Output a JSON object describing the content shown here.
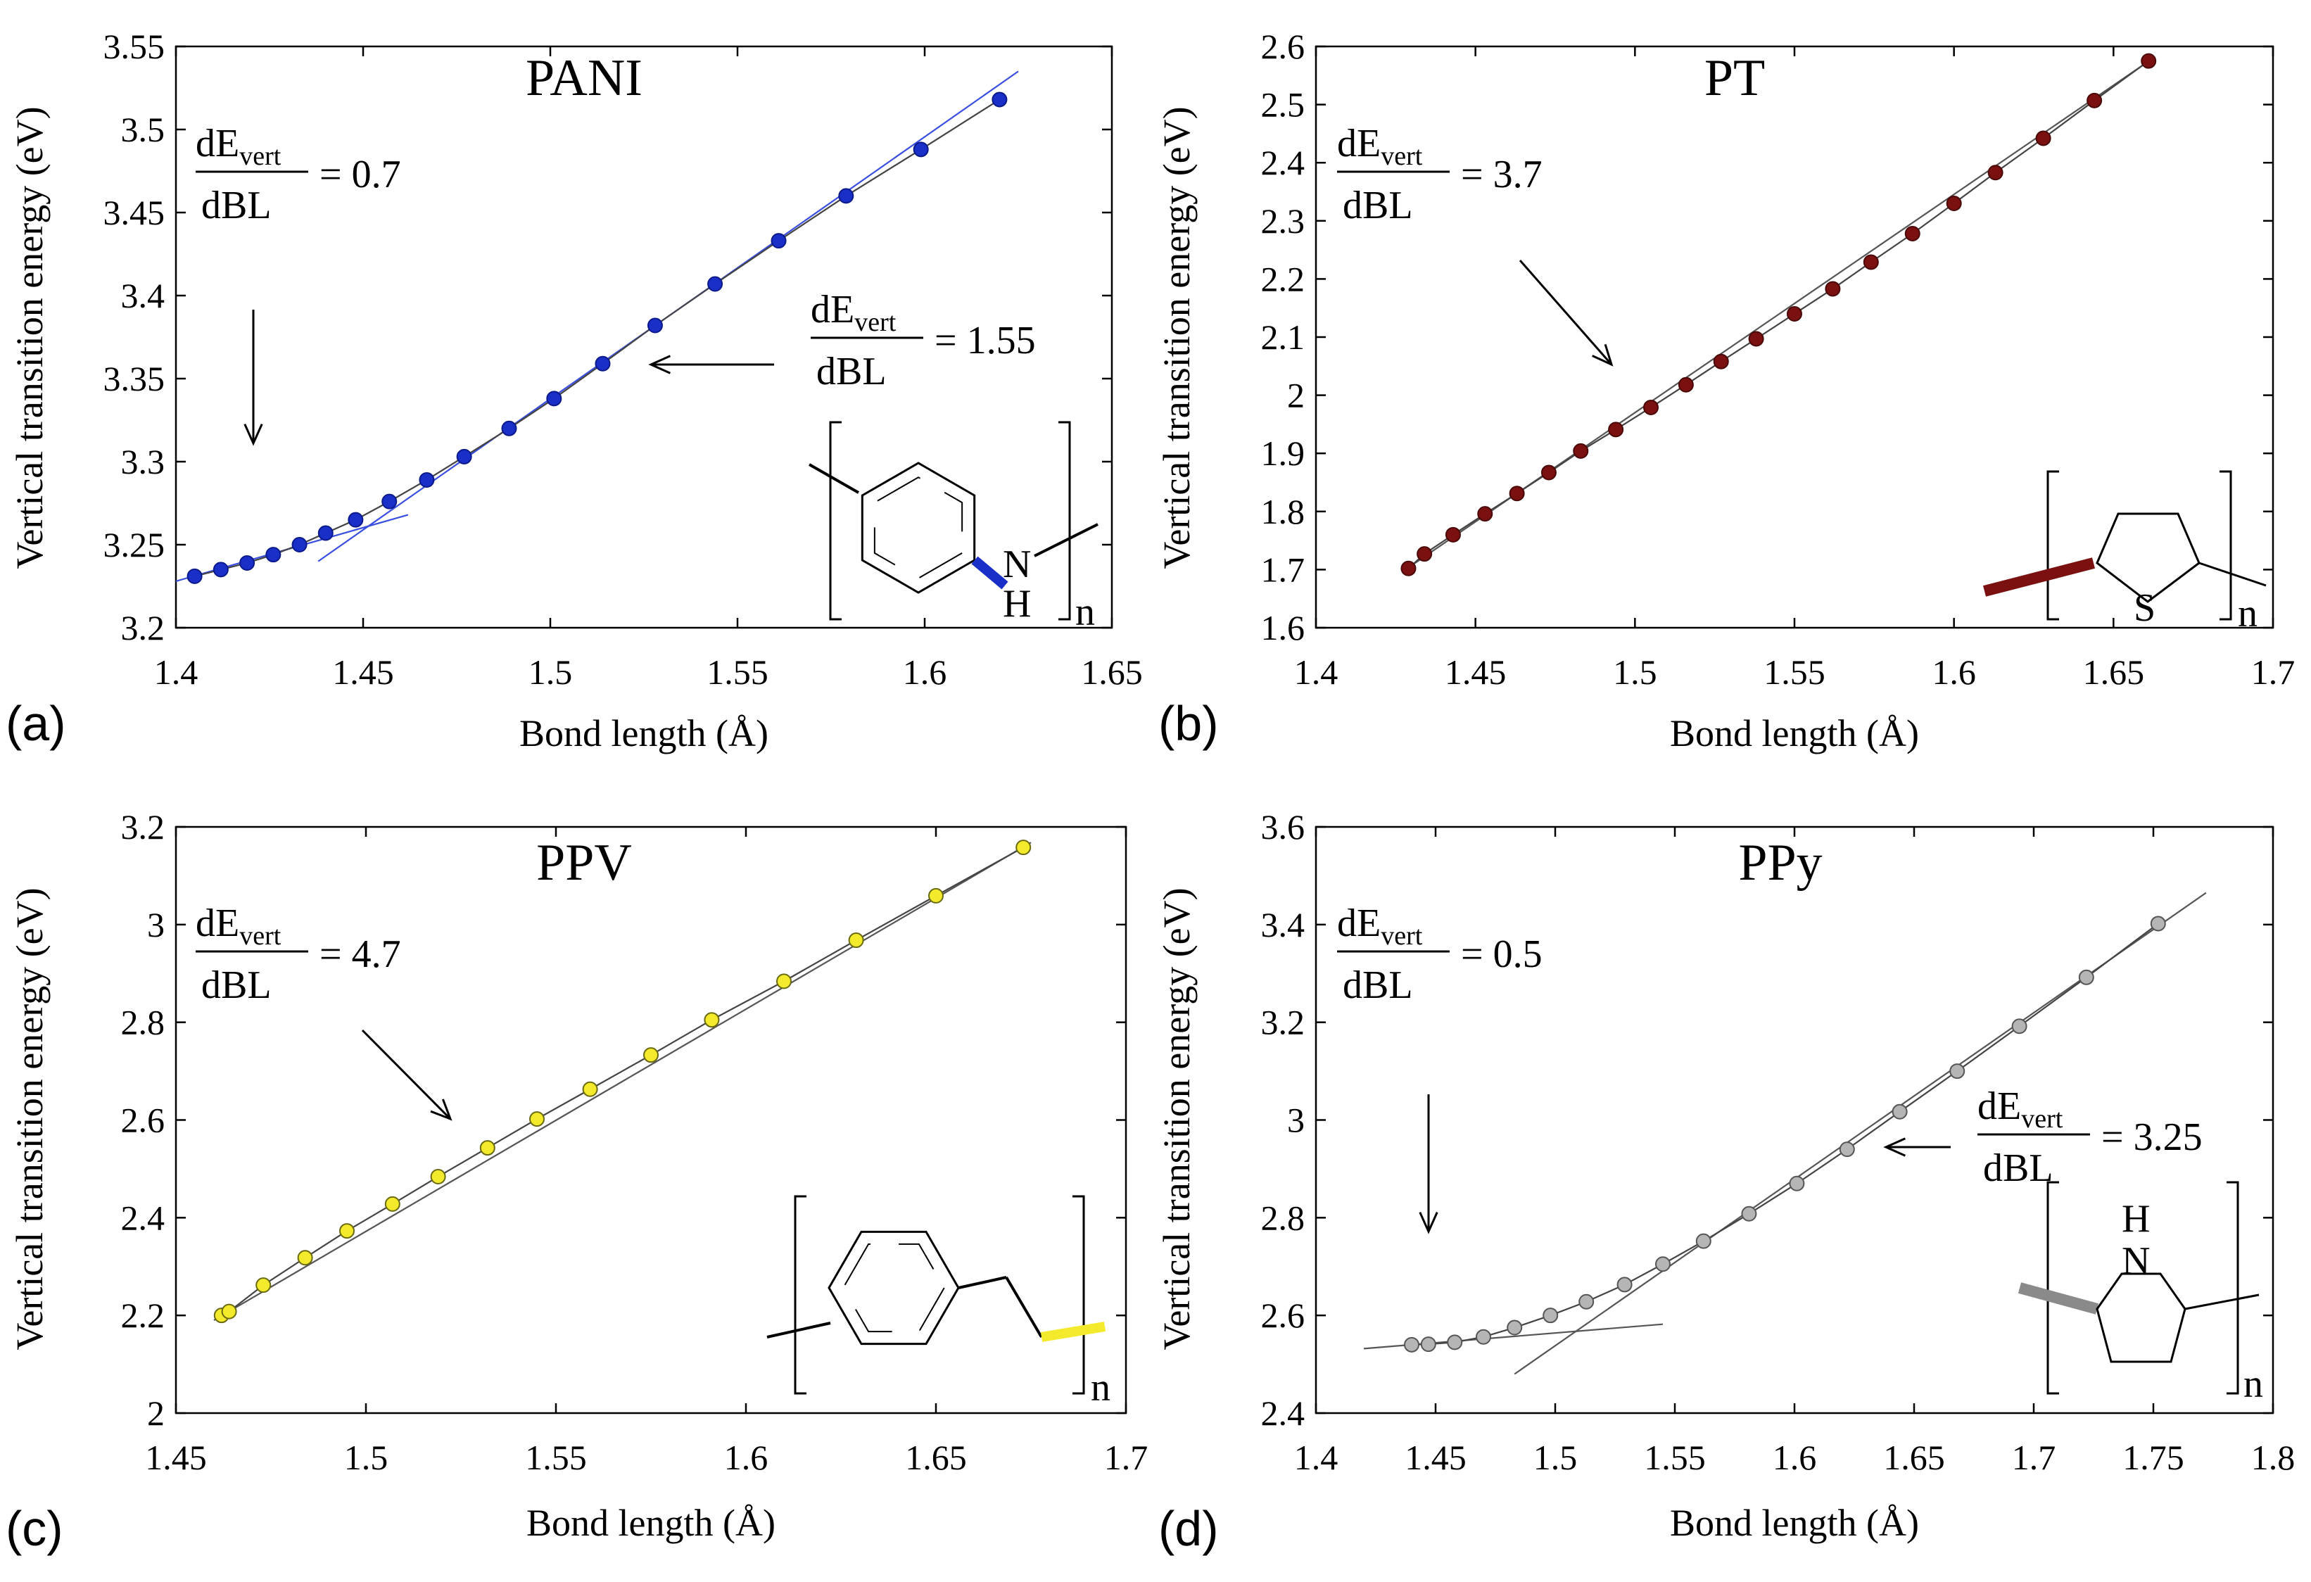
{
  "chart_data": [
    {
      "panel_label": "(a)",
      "type": "scatter",
      "title": "PANI",
      "xlabel": "Bond length (Å)",
      "ylabel": "Vertical transition energy (eV)",
      "xlim": [
        1.4,
        1.65
      ],
      "ylim": [
        3.2,
        3.55
      ],
      "xticks": [
        "1.4",
        "1.45",
        "1.5",
        "1.55",
        "1.6",
        "1.65"
      ],
      "yticks": [
        "3.2",
        "3.25",
        "3.3",
        "3.35",
        "3.4",
        "3.45",
        "3.5",
        "3.55"
      ],
      "marker_color": "#1a2ec8",
      "marker_edge": "#0b1a8a",
      "marker_fill": "filled",
      "line_color": "#444444",
      "fit_color": "#3a4fe0",
      "series": [
        {
          "name": "PANI",
          "x": [
            1.405,
            1.412,
            1.419,
            1.426,
            1.433,
            1.44,
            1.448,
            1.457,
            1.467,
            1.477,
            1.489,
            1.501,
            1.514,
            1.528,
            1.544,
            1.561,
            1.579,
            1.599,
            1.62
          ],
          "y": [
            3.231,
            3.235,
            3.239,
            3.244,
            3.25,
            3.257,
            3.265,
            3.276,
            3.289,
            3.303,
            3.32,
            3.338,
            3.359,
            3.382,
            3.407,
            3.433,
            3.46,
            3.488,
            3.518
          ]
        }
      ],
      "fits": [
        {
          "x": [
            1.4,
            1.462
          ],
          "y": [
            3.228,
            3.268
          ]
        },
        {
          "x": [
            1.438,
            1.625
          ],
          "y": [
            3.24,
            3.535
          ]
        }
      ],
      "annotations": [
        {
          "numerator": "dE",
          "subscript": "vert",
          "denominator": "dBL",
          "value": "= 0.7"
        },
        {
          "numerator": "dE",
          "subscript": "vert",
          "denominator": "dBL",
          "value": "= 1.55"
        }
      ],
      "structure": {
        "atom_labels": [
          "N",
          "H"
        ],
        "repeat_label": "n",
        "highlight_color": "#1a2ec8"
      }
    },
    {
      "panel_label": "(b)",
      "type": "scatter",
      "title": "PT",
      "xlabel": "Bond length (Å)",
      "ylabel": "Vertical transition energy (eV)",
      "xlim": [
        1.4,
        1.7
      ],
      "ylim": [
        1.6,
        2.6
      ],
      "xticks": [
        "1.4",
        "1.45",
        "1.5",
        "1.55",
        "1.6",
        "1.65",
        "1.7"
      ],
      "yticks": [
        "1.6",
        "1.7",
        "1.8",
        "1.9",
        "2",
        "2.1",
        "2.2",
        "2.3",
        "2.4",
        "2.5",
        "2.6"
      ],
      "marker_color": "#7a1010",
      "marker_edge": "#4a0808",
      "marker_fill": "filled",
      "line_color": "#444444",
      "fit_color": "#555555",
      "series": [
        {
          "name": "PT",
          "x": [
            1.429,
            1.434,
            1.443,
            1.453,
            1.463,
            1.473,
            1.483,
            1.494,
            1.505,
            1.516,
            1.527,
            1.538,
            1.55,
            1.562,
            1.574,
            1.587,
            1.6,
            1.613,
            1.628,
            1.644,
            1.661
          ],
          "y": [
            1.702,
            1.727,
            1.76,
            1.796,
            1.831,
            1.867,
            1.904,
            1.941,
            1.979,
            2.018,
            2.058,
            2.097,
            2.14,
            2.183,
            2.229,
            2.278,
            2.33,
            2.383,
            2.442,
            2.507,
            2.575
          ]
        }
      ],
      "fits": [
        {
          "x": [
            1.427,
            1.663
          ],
          "y": [
            1.696,
            2.582
          ]
        }
      ],
      "annotations": [
        {
          "numerator": "dE",
          "subscript": "vert",
          "denominator": "dBL",
          "value": "= 3.7"
        }
      ],
      "structure": {
        "atom_labels": [
          "S"
        ],
        "repeat_label": "n",
        "highlight_color": "#7a1010"
      }
    },
    {
      "panel_label": "(c)",
      "type": "scatter",
      "title": "PPV",
      "xlabel": "Bond length (Å)",
      "ylabel": "Vertical transition energy (eV)",
      "xlim": [
        1.45,
        1.7
      ],
      "ylim": [
        2.0,
        3.2
      ],
      "xticks": [
        "1.45",
        "1.5",
        "1.55",
        "1.6",
        "1.65",
        "1.7"
      ],
      "yticks": [
        "2",
        "2.2",
        "2.4",
        "2.6",
        "2.8",
        "3",
        "3.2"
      ],
      "marker_color": "#f2ea2a",
      "marker_edge": "#6a6a10",
      "marker_fill": "filled",
      "line_color": "#444444",
      "fit_color": "#555555",
      "series": [
        {
          "name": "PPV",
          "x": [
            1.462,
            1.464,
            1.473,
            1.484,
            1.495,
            1.507,
            1.519,
            1.532,
            1.545,
            1.559,
            1.575,
            1.591,
            1.61,
            1.629,
            1.65,
            1.673
          ],
          "y": [
            2.2,
            2.208,
            2.262,
            2.318,
            2.373,
            2.428,
            2.484,
            2.543,
            2.602,
            2.663,
            2.733,
            2.805,
            2.884,
            2.968,
            3.059,
            3.158
          ]
        }
      ],
      "fits": [
        {
          "x": [
            1.46,
            1.675
          ],
          "y": [
            2.19,
            3.168
          ]
        }
      ],
      "annotations": [
        {
          "numerator": "dE",
          "subscript": "vert",
          "denominator": "dBL",
          "value": "= 4.7"
        }
      ],
      "structure": {
        "atom_labels": [],
        "repeat_label": "n",
        "highlight_color": "#f2ea2a"
      }
    },
    {
      "panel_label": "(d)",
      "type": "scatter",
      "title": "PPy",
      "xlabel": "Bond length (Å)",
      "ylabel": "Vertical transition energy (eV)",
      "xlim": [
        1.4,
        1.8
      ],
      "ylim": [
        2.4,
        3.6
      ],
      "xticks": [
        "1.4",
        "1.45",
        "1.5",
        "1.55",
        "1.6",
        "1.65",
        "1.7",
        "1.75",
        "1.8"
      ],
      "yticks": [
        "2.4",
        "2.6",
        "2.8",
        "3",
        "3.2",
        "3.4",
        "3.6"
      ],
      "marker_color": "#b5b5b5",
      "marker_edge": "#555555",
      "marker_fill": "filled",
      "line_color": "#444444",
      "fit_color": "#555555",
      "series": [
        {
          "name": "PPy",
          "x": [
            1.44,
            1.447,
            1.458,
            1.47,
            1.483,
            1.498,
            1.513,
            1.529,
            1.545,
            1.562,
            1.581,
            1.601,
            1.622,
            1.644,
            1.668,
            1.694,
            1.722,
            1.752
          ],
          "y": [
            2.54,
            2.541,
            2.545,
            2.556,
            2.575,
            2.6,
            2.628,
            2.663,
            2.705,
            2.752,
            2.808,
            2.87,
            2.94,
            3.017,
            3.1,
            3.192,
            3.292,
            3.402
          ]
        }
      ],
      "fits": [
        {
          "x": [
            1.42,
            1.545
          ],
          "y": [
            2.532,
            2.582
          ]
        },
        {
          "x": [
            1.483,
            1.772
          ],
          "y": [
            2.48,
            3.465
          ]
        }
      ],
      "annotations": [
        {
          "numerator": "dE",
          "subscript": "vert",
          "denominator": "dBL",
          "value": "= 0.5"
        },
        {
          "numerator": "dE",
          "subscript": "vert",
          "denominator": "dBL",
          "value": "= 3.25"
        }
      ],
      "structure": {
        "atom_labels": [
          "H",
          "N"
        ],
        "repeat_label": "n",
        "highlight_color": "#8a8a8a"
      }
    }
  ]
}
